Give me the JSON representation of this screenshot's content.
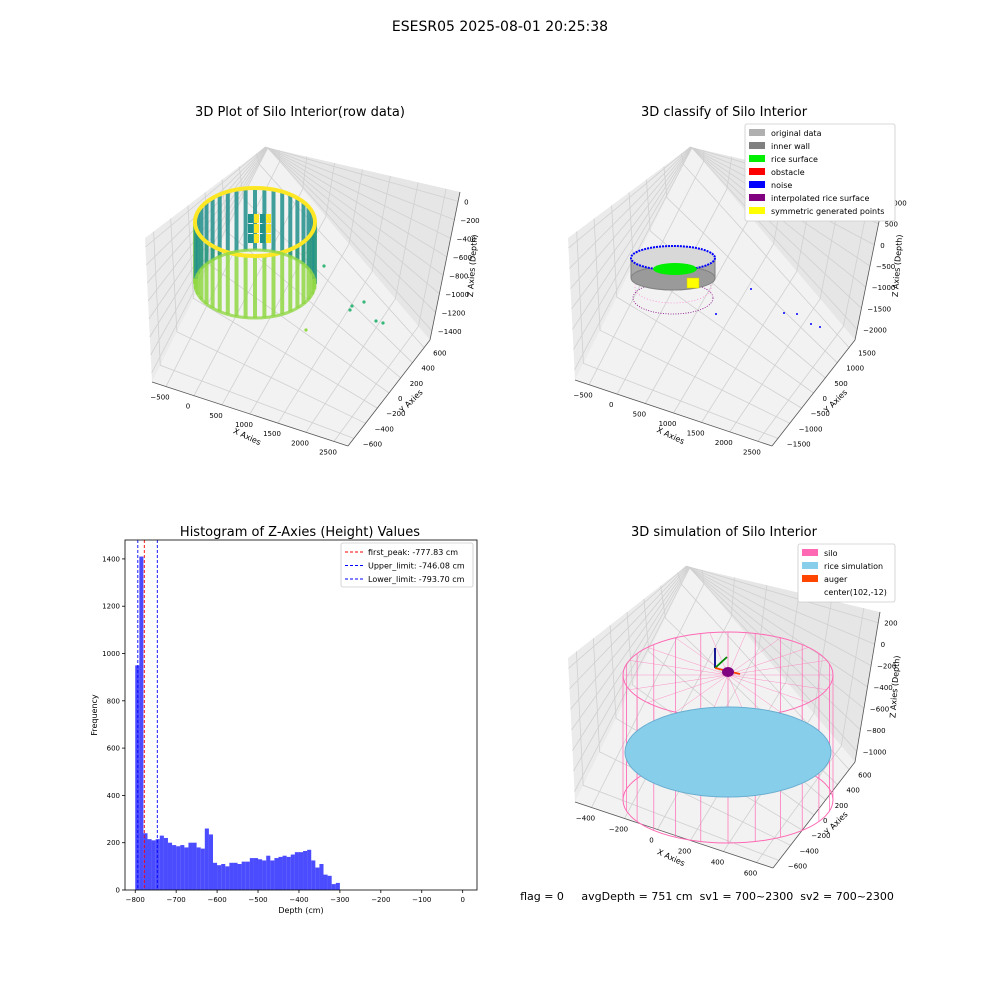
{
  "suptitle": "ESESR05 2025-08-01 20:25:38",
  "footer_text": "flag = 0     avgDepth = 751 cm  sv1 = 700~2300  sv2 = 700~2300",
  "chart_data": [
    {
      "id": "raw",
      "type": "scatter3d",
      "title": "3D Plot of Silo Interior(row data)",
      "xlabel": "X Axies",
      "ylabel": "Y Axies",
      "zlabel": "Z Axies (Depth)",
      "x_ticks": [
        "−500",
        "0",
        "500",
        "1000",
        "1500",
        "2000",
        "2500"
      ],
      "y_ticks": [
        "−600",
        "−400",
        "−200",
        "0",
        "200",
        "400",
        "600"
      ],
      "z_ticks": [
        "−1400",
        "−1200",
        "−1000",
        "−800",
        "−600",
        "−400",
        "−200",
        "0"
      ],
      "colormap": [
        "#440154",
        "#31688e",
        "#21918c",
        "#35b779",
        "#90d743",
        "#fde725"
      ]
    },
    {
      "id": "classify",
      "type": "scatter3d",
      "title": "3D classify of Silo Interior",
      "xlabel": "X Axies",
      "ylabel": "Y Axies",
      "zlabel": "Z Axies (Depth)",
      "x_ticks": [
        "−500",
        "0",
        "500",
        "1000",
        "1500",
        "2000",
        "2500"
      ],
      "y_ticks": [
        "−1500",
        "−1000",
        "−500",
        "0",
        "500",
        "1000",
        "1500"
      ],
      "z_ticks": [
        "−2000",
        "−1500",
        "−1000",
        "−500",
        "0",
        "500",
        "1000"
      ],
      "legend": [
        {
          "label": "original data",
          "color": "#b0b0b0"
        },
        {
          "label": "inner wall",
          "color": "#808080"
        },
        {
          "label": "rice surface",
          "color": "#00ee00"
        },
        {
          "label": "obstacle",
          "color": "#ff0000"
        },
        {
          "label": "noise",
          "color": "#0000ff"
        },
        {
          "label": "interpolated rice surface",
          "color": "#800080"
        },
        {
          "label": "symmetric generated points",
          "color": "#ffff00"
        }
      ],
      "legend_loc": "upper right"
    },
    {
      "id": "hist",
      "type": "bar",
      "title": "Histogram of Z-Axies (Height) Values",
      "xlabel": "Depth (cm)",
      "ylabel": "Frequency",
      "color": "#0000ff",
      "bin_start": -800,
      "bin_width": 10,
      "values": [
        950,
        1410,
        240,
        215,
        210,
        215,
        230,
        220,
        200,
        190,
        185,
        190,
        180,
        200,
        200,
        180,
        175,
        260,
        235,
        115,
        105,
        110,
        100,
        115,
        115,
        110,
        120,
        120,
        135,
        135,
        130,
        125,
        145,
        125,
        135,
        140,
        145,
        140,
        150,
        160,
        160,
        165,
        170,
        125,
        95,
        110,
        65,
        60,
        25,
        30
      ],
      "xlim": [
        -825,
        35
      ],
      "ylim": [
        0,
        1480
      ],
      "x_ticks": [
        -800,
        -700,
        -600,
        -500,
        -400,
        -300,
        -200,
        -100,
        0
      ],
      "y_ticks": [
        0,
        200,
        400,
        600,
        800,
        1000,
        1200,
        1400
      ],
      "vlines": [
        {
          "x": -777.83,
          "color": "#ff0000",
          "label": "first_peak: -777.83 cm"
        },
        {
          "x": -746.08,
          "color": "#0000ff",
          "label": "Upper_limit: -746.08 cm"
        },
        {
          "x": -793.7,
          "color": "#0000ff",
          "label": "Lower_limit: -793.70 cm"
        }
      ],
      "legend_loc": "upper right"
    },
    {
      "id": "sim",
      "type": "surface3d",
      "title": "3D simulation of Silo Interior",
      "xlabel": "X Axies",
      "ylabel": "Y Axies",
      "zlabel": "Z Axies (Depth)",
      "x_ticks": [
        "−400",
        "−200",
        "0",
        "200",
        "400",
        "600"
      ],
      "y_ticks": [
        "−600",
        "−400",
        "−200",
        "0",
        "200",
        "400",
        "600"
      ],
      "z_ticks": [
        "−1000",
        "−800",
        "−600",
        "−400",
        "−200",
        "0",
        "200"
      ],
      "legend": [
        {
          "label": "silo",
          "color": "#ff69b4"
        },
        {
          "label": "rice simulation",
          "color": "#87ceeb"
        },
        {
          "label": "auger",
          "color": "#ff4500"
        },
        {
          "label": "center(102,-12)",
          "color": ""
        }
      ],
      "legend_loc": "upper right"
    }
  ]
}
